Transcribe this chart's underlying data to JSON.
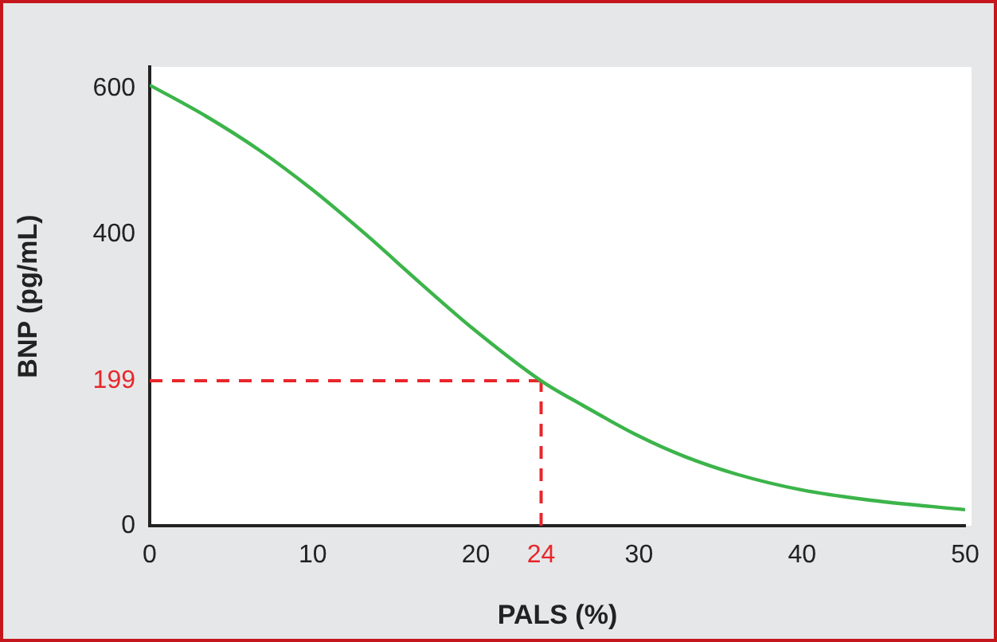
{
  "chart_data": {
    "type": "line",
    "xlabel": "PALS (%)",
    "ylabel": "BNP (pg/mL)",
    "xlim": [
      0,
      50
    ],
    "xticks": [
      0,
      10,
      20,
      30,
      40,
      50
    ],
    "ylim": [
      0,
      630
    ],
    "yticks": [
      0,
      400,
      600
    ],
    "grid": false,
    "legend": false,
    "marker": "none",
    "line_style": "solid",
    "series": [
      {
        "color": "#3cb44a",
        "x": [
          0,
          3.4,
          6.7,
          10,
          13.3,
          16.6,
          19.8,
          24,
          26.5,
          30,
          32.8,
          36.1,
          40,
          44.2,
          50
        ],
        "values": [
          605,
          563,
          516,
          461,
          399,
          333,
          271,
          199,
          166,
          123,
          95,
          70,
          49,
          35,
          22
        ]
      }
    ],
    "ref_lines": [
      {
        "axis": "y",
        "value": 199,
        "label": "199",
        "color": "#e8262b",
        "line_style": "dashed"
      },
      {
        "axis": "x",
        "value": 24,
        "label": "24",
        "color": "#e8262b",
        "line_style": "dashed"
      }
    ]
  }
}
